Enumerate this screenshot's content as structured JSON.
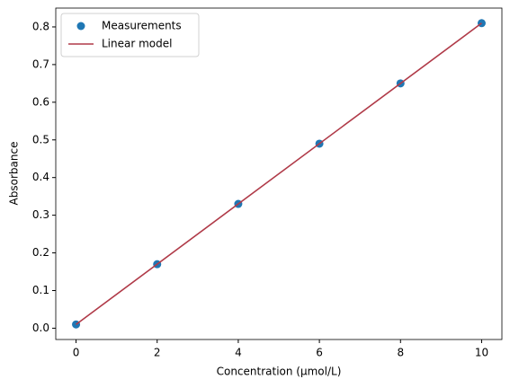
{
  "chart_data": {
    "type": "scatter",
    "xlabel": "Concentration (µmol/L)",
    "ylabel": "Absorbance",
    "series": [
      {
        "name": "Measurements",
        "type": "scatter",
        "color": "#1f77b4",
        "x": [
          0,
          2,
          4,
          6,
          8,
          10
        ],
        "values": [
          0.01,
          0.17,
          0.33,
          0.49,
          0.65,
          0.81
        ]
      },
      {
        "name": "Linear model",
        "type": "line",
        "color": "#b03a48",
        "x": [
          0,
          10
        ],
        "values": [
          0.01,
          0.81
        ]
      }
    ],
    "xlim": [
      -0.5,
      10.5
    ],
    "xticks": [
      0,
      2,
      4,
      6,
      8,
      10
    ],
    "ylim": [
      -0.03,
      0.85
    ],
    "yticks": [
      {
        "value": 0,
        "label": "0.0"
      },
      0.1,
      0.2,
      0.3,
      0.4,
      0.5,
      0.6,
      0.7,
      0.8
    ],
    "legend": "upper left"
  }
}
